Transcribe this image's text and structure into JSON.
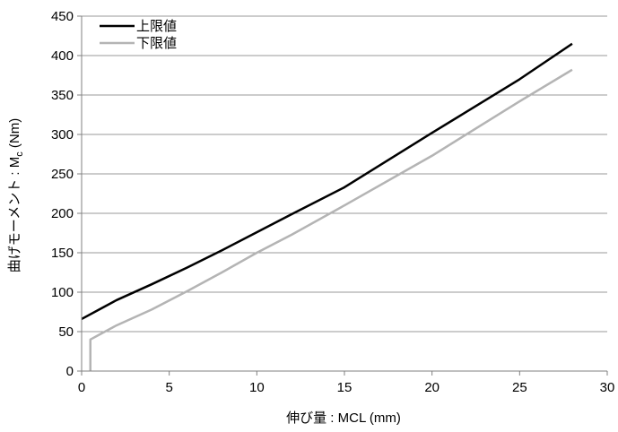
{
  "chart_data": {
    "type": "line",
    "xlabel": "伸び量 : MCL (mm)",
    "ylabel_main": "曲げモーメント : M",
    "ylabel_sub": "c",
    "ylabel_unit": " (Nm)",
    "xlim": [
      0,
      30
    ],
    "ylim": [
      0,
      450
    ],
    "xticks": [
      0,
      5,
      10,
      15,
      20,
      25,
      30
    ],
    "yticks": [
      0,
      50,
      100,
      150,
      200,
      250,
      300,
      350,
      400,
      450
    ],
    "grid": "horizontal",
    "legend_position": "top-left",
    "series": [
      {
        "name": "上限値",
        "color": "#000000",
        "points": [
          [
            0,
            66
          ],
          [
            1,
            78
          ],
          [
            2,
            90
          ],
          [
            4,
            110
          ],
          [
            6,
            131
          ],
          [
            8,
            153
          ],
          [
            10,
            176
          ],
          [
            12,
            199
          ],
          [
            15,
            233
          ],
          [
            20,
            302
          ],
          [
            25,
            370
          ],
          [
            28,
            415
          ]
        ]
      },
      {
        "name": "下限値",
        "color": "#b4b4b4",
        "points": [
          [
            0.5,
            0
          ],
          [
            0.5,
            40
          ],
          [
            1,
            46
          ],
          [
            2,
            58
          ],
          [
            4,
            78
          ],
          [
            6,
            101
          ],
          [
            8,
            125
          ],
          [
            10,
            150
          ],
          [
            12,
            173
          ],
          [
            15,
            210
          ],
          [
            20,
            273
          ],
          [
            25,
            342
          ],
          [
            28,
            382
          ]
        ]
      }
    ]
  }
}
